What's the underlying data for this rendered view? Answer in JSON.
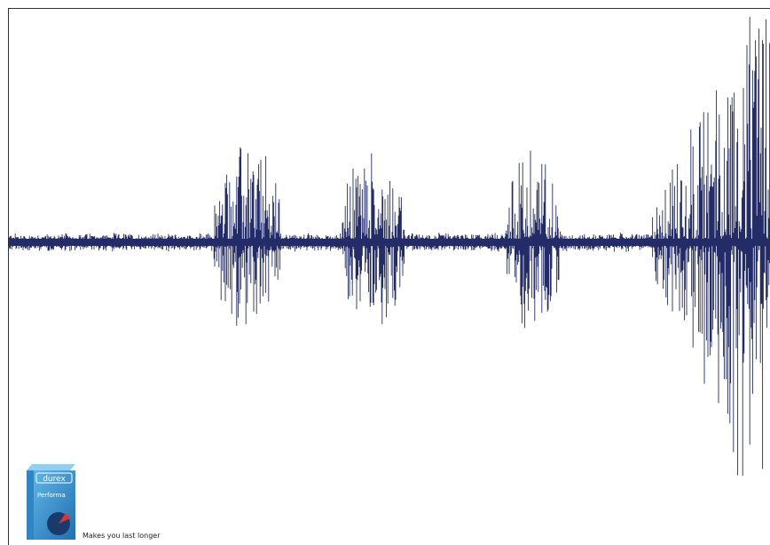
{
  "ad": {
    "brand": "durex",
    "product": "Performa",
    "tagline": "Makes you last longer"
  }
}
